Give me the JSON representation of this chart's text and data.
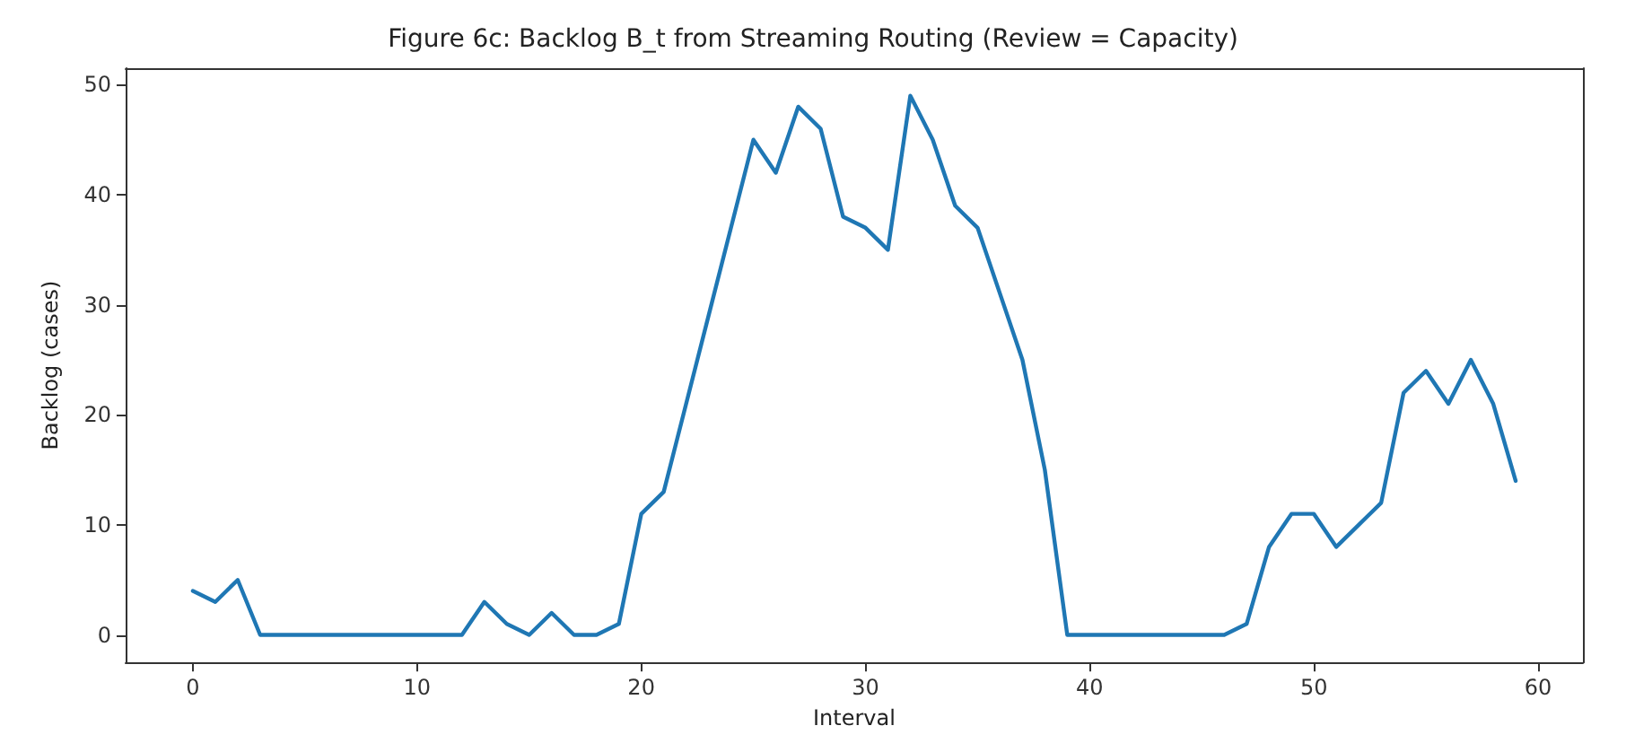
{
  "chart_data": {
    "type": "line",
    "title": "Figure 6c: Backlog B_t from Streaming Routing (Review = Capacity)",
    "xlabel": "Interval",
    "ylabel": "Backlog (cases)",
    "x": [
      0,
      1,
      2,
      3,
      4,
      5,
      6,
      7,
      8,
      9,
      10,
      11,
      12,
      13,
      14,
      15,
      16,
      17,
      18,
      19,
      20,
      21,
      22,
      23,
      24,
      25,
      26,
      27,
      28,
      29,
      30,
      31,
      32,
      33,
      34,
      35,
      36,
      37,
      38,
      39,
      40,
      41,
      42,
      43,
      44,
      45,
      46,
      47,
      48,
      49,
      50,
      51,
      52,
      53,
      54,
      55,
      56,
      57,
      58,
      59
    ],
    "series": [
      {
        "color": "#1f77b4",
        "values": [
          4,
          3,
          5,
          0,
          0,
          0,
          0,
          0,
          0,
          0,
          0,
          0,
          0,
          3,
          1,
          0,
          2,
          0,
          0,
          1,
          11,
          13,
          21,
          29,
          37,
          45,
          42,
          48,
          46,
          38,
          37,
          35,
          49,
          45,
          39,
          37,
          31,
          25,
          15,
          0,
          0,
          0,
          0,
          0,
          0,
          0,
          0,
          1,
          8,
          11,
          11,
          8,
          10,
          12,
          22,
          24,
          21,
          25,
          21,
          14
        ]
      }
    ],
    "xlim": [
      -3,
      62
    ],
    "xticks": [
      0,
      10,
      20,
      30,
      40,
      50,
      60
    ],
    "ylim": [
      -2.5,
      51.5
    ],
    "yticks": [
      0,
      10,
      20,
      30,
      40,
      50
    ],
    "grid": false,
    "marker": "none",
    "line_style": "solid"
  }
}
